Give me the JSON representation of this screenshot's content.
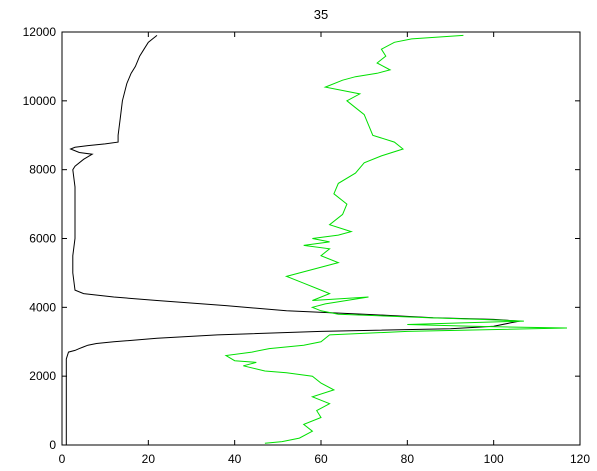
{
  "chart_data": {
    "type": "line",
    "title": "35",
    "xlabel": "",
    "ylabel": "",
    "xlim": [
      0,
      120
    ],
    "ylim": [
      0,
      12000
    ],
    "xticks": [
      0,
      20,
      40,
      60,
      80,
      100,
      120
    ],
    "yticks": [
      0,
      2000,
      4000,
      6000,
      8000,
      10000,
      12000
    ],
    "grid": false,
    "legend": "none",
    "series": [
      {
        "color": "#000000",
        "points": [
          [
            1,
            0
          ],
          [
            1,
            500
          ],
          [
            1,
            1000
          ],
          [
            1,
            1500
          ],
          [
            1,
            2000
          ],
          [
            1,
            2500
          ],
          [
            1.5,
            2700
          ],
          [
            3,
            2750
          ],
          [
            4,
            2800
          ],
          [
            5,
            2850
          ],
          [
            6,
            2900
          ],
          [
            8,
            2950
          ],
          [
            12,
            3000
          ],
          [
            22,
            3100
          ],
          [
            36,
            3200
          ],
          [
            60,
            3300
          ],
          [
            90,
            3380
          ],
          [
            100,
            3450
          ],
          [
            104,
            3550
          ],
          [
            106,
            3600
          ],
          [
            100,
            3650
          ],
          [
            86,
            3700
          ],
          [
            70,
            3800
          ],
          [
            52,
            3900
          ],
          [
            38,
            4050
          ],
          [
            22,
            4200
          ],
          [
            12,
            4300
          ],
          [
            5,
            4400
          ],
          [
            3,
            4500
          ],
          [
            2.5,
            5000
          ],
          [
            2.5,
            5500
          ],
          [
            3,
            6000
          ],
          [
            3,
            6500
          ],
          [
            3,
            7000
          ],
          [
            3,
            7500
          ],
          [
            2.5,
            8000
          ],
          [
            3,
            8100
          ],
          [
            5,
            8300
          ],
          [
            7,
            8450
          ],
          [
            4,
            8500
          ],
          [
            2,
            8600
          ],
          [
            3,
            8650
          ],
          [
            6,
            8700
          ],
          [
            10,
            8750
          ],
          [
            13,
            8800
          ],
          [
            13,
            9000
          ],
          [
            13.5,
            9500
          ],
          [
            14,
            10000
          ],
          [
            15,
            10500
          ],
          [
            16,
            10800
          ],
          [
            17,
            11000
          ],
          [
            18,
            11300
          ],
          [
            19,
            11500
          ],
          [
            20,
            11700
          ],
          [
            21,
            11800
          ],
          [
            22,
            11900
          ]
        ]
      },
      {
        "color": "#00e000",
        "points": [
          [
            47,
            50
          ],
          [
            51,
            100
          ],
          [
            55,
            200
          ],
          [
            58,
            400
          ],
          [
            56,
            600
          ],
          [
            60,
            800
          ],
          [
            59,
            1000
          ],
          [
            62,
            1200
          ],
          [
            58,
            1400
          ],
          [
            63,
            1600
          ],
          [
            60,
            1800
          ],
          [
            58,
            2000
          ],
          [
            52,
            2100
          ],
          [
            47,
            2150
          ],
          [
            42,
            2300
          ],
          [
            45,
            2400
          ],
          [
            40,
            2450
          ],
          [
            38,
            2600
          ],
          [
            44,
            2700
          ],
          [
            48,
            2800
          ],
          [
            56,
            2900
          ],
          [
            60,
            3000
          ],
          [
            62,
            3200
          ],
          [
            80,
            3300
          ],
          [
            117,
            3400
          ],
          [
            95,
            3450
          ],
          [
            80,
            3500
          ],
          [
            107,
            3600
          ],
          [
            97,
            3650
          ],
          [
            85,
            3700
          ],
          [
            64,
            3800
          ],
          [
            60,
            3900
          ],
          [
            58,
            4000
          ],
          [
            61,
            4100
          ],
          [
            71,
            4300
          ],
          [
            58,
            4200
          ],
          [
            62,
            4400
          ],
          [
            60,
            4500
          ],
          [
            56,
            4700
          ],
          [
            52,
            4900
          ],
          [
            58,
            5100
          ],
          [
            64,
            5300
          ],
          [
            60,
            5500
          ],
          [
            62,
            5700
          ],
          [
            56,
            5800
          ],
          [
            62,
            5900
          ],
          [
            58,
            6000
          ],
          [
            64,
            6100
          ],
          [
            67,
            6200
          ],
          [
            62,
            6400
          ],
          [
            65,
            6700
          ],
          [
            66,
            7000
          ],
          [
            63,
            7300
          ],
          [
            64,
            7600
          ],
          [
            68,
            7900
          ],
          [
            70,
            8200
          ],
          [
            74,
            8400
          ],
          [
            79,
            8600
          ],
          [
            77,
            8800
          ],
          [
            72,
            9000
          ],
          [
            71,
            9300
          ],
          [
            70,
            9600
          ],
          [
            68,
            9800
          ],
          [
            66,
            10000
          ],
          [
            69,
            10200
          ],
          [
            61,
            10400
          ],
          [
            65,
            10600
          ],
          [
            68,
            10700
          ],
          [
            73,
            10800
          ],
          [
            76,
            10900
          ],
          [
            73,
            11100
          ],
          [
            75,
            11300
          ],
          [
            74,
            11500
          ],
          [
            77,
            11700
          ],
          [
            81,
            11800
          ],
          [
            93,
            11900
          ]
        ]
      }
    ]
  }
}
